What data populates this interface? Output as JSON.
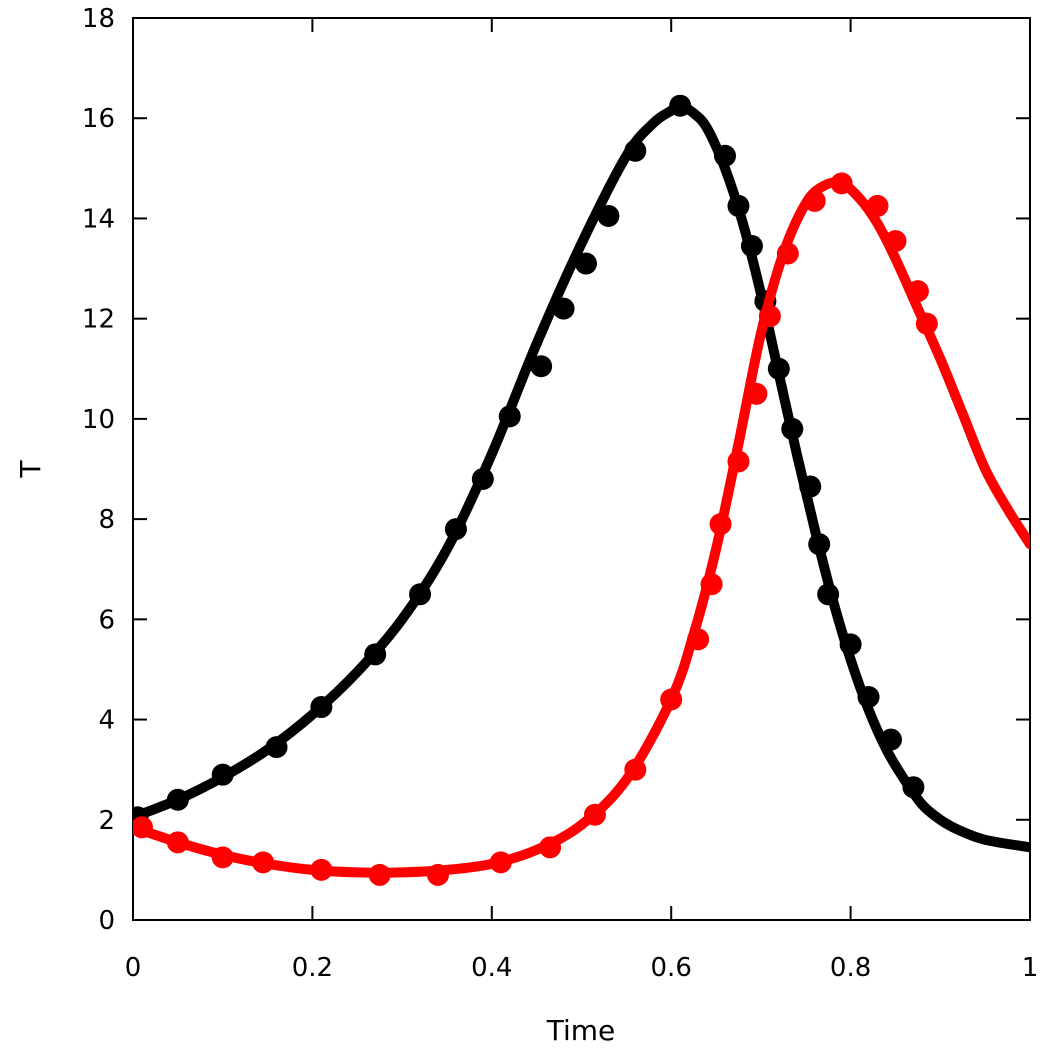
{
  "chart_data": {
    "type": "line",
    "title": "",
    "xlabel": "Time",
    "ylabel": "T",
    "xlim": [
      0,
      1
    ],
    "ylim": [
      0,
      18
    ],
    "xticks": [
      0,
      0.2,
      0.4,
      0.6,
      0.8,
      1
    ],
    "xtick_labels": [
      "0",
      "0.2",
      "0.4",
      "0.6",
      "0.8",
      "1"
    ],
    "yticks": [
      0,
      2,
      4,
      6,
      8,
      10,
      12,
      14,
      16,
      18
    ],
    "ytick_labels": [
      "0",
      "2",
      "4",
      "6",
      "8",
      "10",
      "12",
      "14",
      "16",
      "18"
    ],
    "grid": false,
    "legend": "none",
    "series": [
      {
        "color": "#000000",
        "curve": {
          "x": [
            0.0,
            0.05,
            0.1,
            0.15,
            0.2,
            0.25,
            0.3,
            0.35,
            0.4,
            0.45,
            0.5,
            0.55,
            0.58,
            0.6,
            0.61,
            0.625,
            0.64,
            0.66,
            0.68,
            0.7,
            0.72,
            0.74,
            0.76,
            0.78,
            0.8,
            0.82,
            0.84,
            0.86,
            0.88,
            0.9,
            0.92,
            0.95,
            1.0
          ],
          "y": [
            2.05,
            2.4,
            2.85,
            3.4,
            4.1,
            4.95,
            6.0,
            7.4,
            9.3,
            11.5,
            13.5,
            15.25,
            15.9,
            16.15,
            16.25,
            16.1,
            15.8,
            15.0,
            13.9,
            12.5,
            10.9,
            9.3,
            7.8,
            6.4,
            5.2,
            4.2,
            3.4,
            2.8,
            2.3,
            2.0,
            1.8,
            1.6,
            1.45
          ]
        },
        "points": {
          "x": [
            0.005,
            0.05,
            0.1,
            0.16,
            0.21,
            0.27,
            0.32,
            0.36,
            0.39,
            0.42,
            0.455,
            0.48,
            0.505,
            0.53,
            0.56,
            0.61,
            0.66,
            0.675,
            0.69,
            0.705,
            0.72,
            0.735,
            0.755,
            0.765,
            0.775,
            0.8,
            0.82,
            0.845,
            0.87
          ],
          "y": [
            2.05,
            2.4,
            2.9,
            3.45,
            4.25,
            5.3,
            6.5,
            7.8,
            8.8,
            10.05,
            11.05,
            12.2,
            13.1,
            14.05,
            15.35,
            16.25,
            15.25,
            14.25,
            13.45,
            12.35,
            11.0,
            9.8,
            8.65,
            7.5,
            6.5,
            5.5,
            4.45,
            3.6,
            2.65
          ]
        }
      },
      {
        "color": "#ff0000",
        "curve": {
          "x": [
            0.0,
            0.05,
            0.1,
            0.15,
            0.2,
            0.25,
            0.3,
            0.35,
            0.4,
            0.45,
            0.5,
            0.55,
            0.6,
            0.625,
            0.65,
            0.675,
            0.7,
            0.725,
            0.75,
            0.77,
            0.79,
            0.81,
            0.83,
            0.85,
            0.875,
            0.9,
            0.925,
            0.95,
            0.975,
            1.0
          ],
          "y": [
            1.85,
            1.55,
            1.3,
            1.12,
            1.0,
            0.95,
            0.95,
            1.0,
            1.12,
            1.4,
            1.9,
            2.8,
            4.4,
            5.7,
            7.4,
            9.5,
            11.7,
            13.3,
            14.3,
            14.65,
            14.7,
            14.4,
            13.9,
            13.2,
            12.2,
            11.2,
            10.1,
            9.0,
            8.2,
            7.5
          ]
        },
        "points": {
          "x": [
            0.01,
            0.05,
            0.1,
            0.145,
            0.21,
            0.275,
            0.34,
            0.41,
            0.465,
            0.515,
            0.56,
            0.6,
            0.63,
            0.645,
            0.655,
            0.675,
            0.695,
            0.71,
            0.73,
            0.76,
            0.79,
            0.83,
            0.85,
            0.875,
            0.885
          ],
          "y": [
            1.85,
            1.55,
            1.25,
            1.15,
            1.0,
            0.9,
            0.9,
            1.15,
            1.45,
            2.1,
            3.0,
            4.4,
            5.6,
            6.7,
            7.9,
            9.15,
            10.5,
            12.05,
            13.3,
            14.35,
            14.7,
            14.25,
            13.55,
            12.55,
            11.9
          ]
        }
      }
    ]
  }
}
